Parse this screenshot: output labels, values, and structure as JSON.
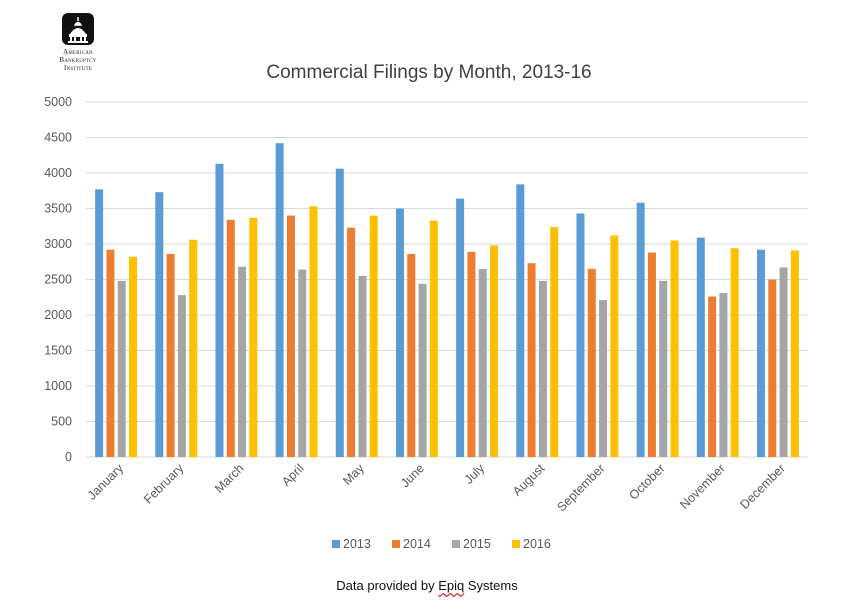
{
  "logo": {
    "lines": [
      "American",
      "Bankruptcy",
      "Institute"
    ]
  },
  "footer": {
    "prefix": "Data provided by ",
    "underlined": "Epiq",
    "suffix": " Systems"
  },
  "colors": {
    "2013": "#5b9bd5",
    "2014": "#ed7d31",
    "2015": "#a5a5a5",
    "2016": "#ffc000",
    "grid": "#d9d9d9",
    "text": "#595959",
    "title": "#404040"
  },
  "chart_data": {
    "type": "bar",
    "title": "Commercial Filings by Month, 2013-16",
    "xlabel": "",
    "ylabel": "",
    "ylim": [
      0,
      5000
    ],
    "yticks": [
      0,
      500,
      1000,
      1500,
      2000,
      2500,
      3000,
      3500,
      4000,
      4500,
      5000
    ],
    "grid": true,
    "legend": "bottom",
    "categories": [
      "January",
      "February",
      "March",
      "April",
      "May",
      "June",
      "July",
      "August",
      "September",
      "October",
      "November",
      "December"
    ],
    "series": [
      {
        "name": "2013",
        "values": [
          3770,
          3730,
          4130,
          4420,
          4060,
          3500,
          3640,
          3840,
          3430,
          3580,
          3090,
          2920
        ]
      },
      {
        "name": "2014",
        "values": [
          2920,
          2860,
          3340,
          3400,
          3230,
          2860,
          2890,
          2730,
          2650,
          2880,
          2260,
          2500
        ]
      },
      {
        "name": "2015",
        "values": [
          2480,
          2280,
          2680,
          2640,
          2550,
          2440,
          2650,
          2480,
          2210,
          2480,
          2310,
          2670
        ]
      },
      {
        "name": "2016",
        "values": [
          2820,
          3060,
          3370,
          3530,
          3400,
          3330,
          2980,
          3240,
          3120,
          3050,
          2940,
          2910
        ]
      }
    ]
  }
}
